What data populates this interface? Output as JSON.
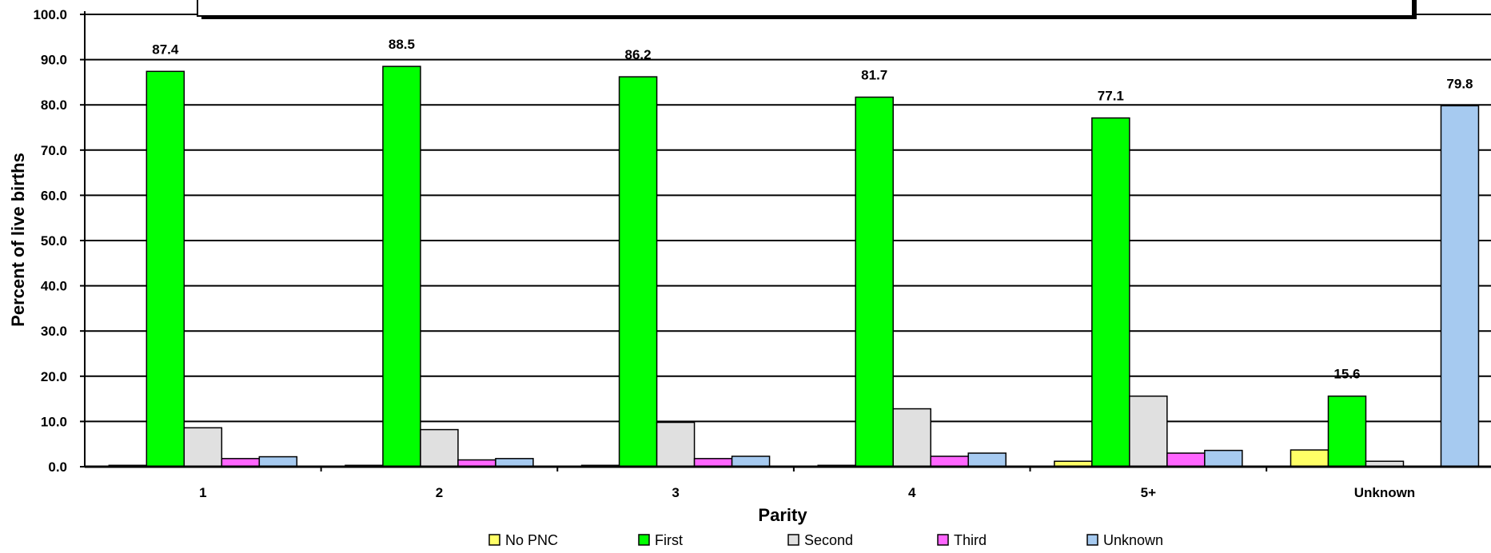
{
  "chart_data": {
    "type": "bar",
    "title": "",
    "xlabel": "Parity",
    "ylabel": "Percent of live births",
    "ylim": [
      0,
      100
    ],
    "yticks": [
      "0.0",
      "10.0",
      "20.0",
      "30.0",
      "40.0",
      "50.0",
      "60.0",
      "70.0",
      "80.0",
      "90.0",
      "100.0"
    ],
    "grid": true,
    "legend_position": "bottom",
    "categories": [
      "1",
      "2",
      "3",
      "4",
      "5+",
      "Unknown"
    ],
    "series": [
      {
        "name": "No PNC",
        "color": "#ffff66",
        "values": [
          0.3,
          0.3,
          0.3,
          0.3,
          1.2,
          3.7
        ]
      },
      {
        "name": "First",
        "color": "#00ff00",
        "values": [
          87.4,
          88.5,
          86.2,
          81.7,
          77.1,
          15.6
        ]
      },
      {
        "name": "Second",
        "color": "#e0e0e0",
        "values": [
          8.6,
          8.2,
          9.8,
          12.8,
          15.6,
          1.2
        ]
      },
      {
        "name": "Third",
        "color": "#ff66ff",
        "values": [
          1.8,
          1.5,
          1.8,
          2.3,
          3.0,
          0.0
        ]
      },
      {
        "name": "Unknown",
        "color": "#a6caf0",
        "values": [
          2.2,
          1.8,
          2.3,
          3.0,
          3.6,
          79.8
        ]
      }
    ],
    "data_labels": [
      {
        "category": "1",
        "series": "First",
        "text": "87.4"
      },
      {
        "category": "2",
        "series": "First",
        "text": "88.5"
      },
      {
        "category": "3",
        "series": "First",
        "text": "86.2"
      },
      {
        "category": "4",
        "series": "First",
        "text": "81.7"
      },
      {
        "category": "5+",
        "series": "First",
        "text": "77.1"
      },
      {
        "category": "Unknown",
        "series": "First",
        "text": "15.6"
      },
      {
        "category": "Unknown",
        "series": "Unknown",
        "text": "79.8"
      }
    ]
  }
}
